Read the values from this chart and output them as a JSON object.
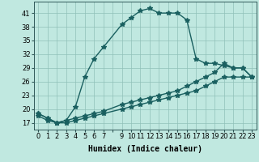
{
  "title": "",
  "xlabel": "Humidex (Indice chaleur)",
  "background_color": "#c0e8e0",
  "grid_color": "#90c0b8",
  "line_color": "#1a6060",
  "xlim": [
    -0.5,
    23.5
  ],
  "ylim": [
    15.5,
    43.5
  ],
  "yticks": [
    17,
    20,
    23,
    26,
    29,
    32,
    35,
    38,
    41
  ],
  "line1_x": [
    0,
    1,
    2,
    3,
    4,
    5,
    6,
    7,
    9,
    10,
    11,
    12,
    13,
    14,
    15,
    16,
    17,
    18,
    19,
    20,
    21,
    22,
    23
  ],
  "line1_y": [
    19,
    18,
    17,
    17.5,
    20.5,
    27,
    31,
    33.5,
    38.5,
    40,
    41.5,
    42,
    41,
    41,
    41,
    39.5,
    31,
    30,
    30,
    29.5,
    29,
    29,
    27
  ],
  "line2_x": [
    0,
    1,
    2,
    3,
    4,
    5,
    6,
    7,
    9,
    10,
    11,
    12,
    13,
    14,
    15,
    16,
    17,
    18,
    19,
    20,
    21,
    22,
    23
  ],
  "line2_y": [
    19,
    18,
    17,
    17.5,
    18,
    18.5,
    19,
    19.5,
    21,
    21.5,
    22,
    22.5,
    23,
    23.5,
    24,
    25,
    26,
    27,
    28,
    30,
    29,
    29,
    27
  ],
  "line3_x": [
    0,
    1,
    2,
    3,
    4,
    5,
    6,
    7,
    9,
    10,
    11,
    12,
    13,
    14,
    15,
    16,
    17,
    18,
    19,
    20,
    21,
    22,
    23
  ],
  "line3_y": [
    18.5,
    17.5,
    17,
    17,
    17.5,
    18,
    18.5,
    19,
    20,
    20.5,
    21,
    21.5,
    22,
    22.5,
    23,
    23.5,
    24,
    25,
    26,
    27,
    27,
    27,
    27
  ],
  "marker": "*",
  "marker_size": 4,
  "line_width": 1.0,
  "tick_fontsize": 6,
  "xlabel_fontsize": 7
}
